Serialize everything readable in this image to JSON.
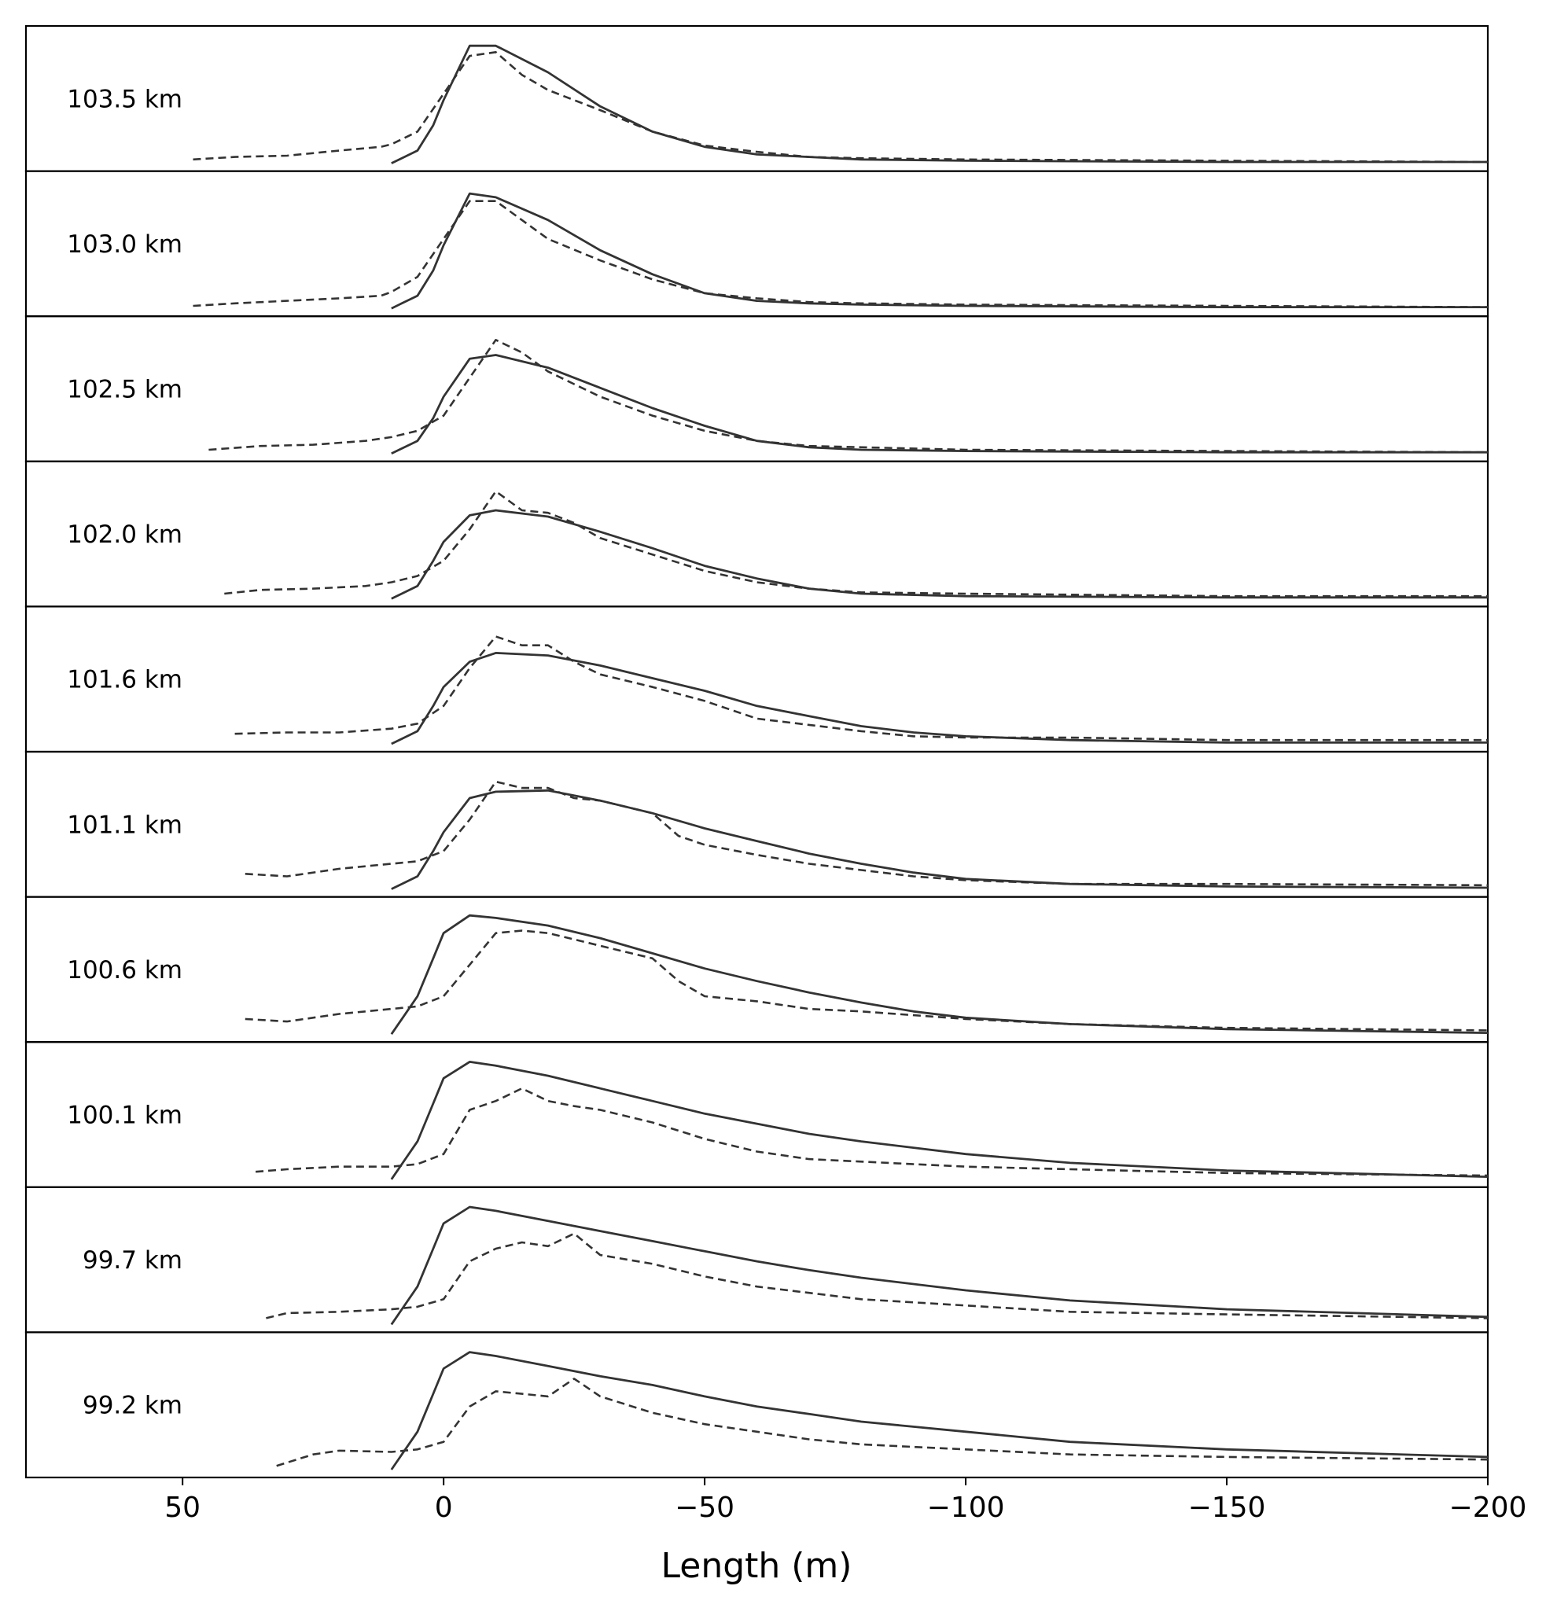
{
  "chart_data": {
    "type": "line",
    "xlabel": "Length (m)",
    "xlim": [
      80,
      -200
    ],
    "xticks": [
      50,
      0,
      -50,
      -100,
      -150,
      -200
    ],
    "xtick_labels": [
      "50",
      "0",
      "−50",
      "−100",
      "−150",
      "−200"
    ],
    "ylim": [
      0,
      1
    ],
    "grid": false,
    "styles": {
      "model": {
        "dash": "solid",
        "color": "#333333"
      },
      "observed": {
        "dash": "dashed",
        "color": "#333333"
      }
    },
    "panels": [
      {
        "label": "103.5 km",
        "model": {
          "x": [
            10,
            5,
            2,
            0,
            -5,
            -10,
            -20,
            -30,
            -40,
            -50,
            -60,
            -70,
            -80,
            -100,
            -150,
            -200
          ],
          "y": [
            0.0,
            0.1,
            0.3,
            0.5,
            0.93,
            0.93,
            0.72,
            0.45,
            0.25,
            0.13,
            0.07,
            0.05,
            0.03,
            0.02,
            0.01,
            0.01
          ]
        },
        "observed": {
          "x": [
            48,
            40,
            30,
            20,
            12,
            10,
            5,
            0,
            -5,
            -10,
            -15,
            -20,
            -30,
            -40,
            -50,
            -60,
            -70,
            -80,
            -100,
            -150,
            -200
          ],
          "y": [
            0.03,
            0.05,
            0.06,
            0.1,
            0.13,
            0.15,
            0.25,
            0.55,
            0.85,
            0.88,
            0.7,
            0.58,
            0.42,
            0.25,
            0.14,
            0.09,
            0.05,
            0.04,
            0.03,
            0.02,
            0.01
          ]
        }
      },
      {
        "label": "103.0 km",
        "model": {
          "x": [
            10,
            5,
            2,
            0,
            -5,
            -10,
            -20,
            -30,
            -40,
            -50,
            -60,
            -70,
            -80,
            -100,
            -150,
            -200
          ],
          "y": [
            0.0,
            0.1,
            0.3,
            0.5,
            0.91,
            0.88,
            0.7,
            0.46,
            0.27,
            0.12,
            0.06,
            0.04,
            0.03,
            0.02,
            0.01,
            0.01
          ]
        },
        "observed": {
          "x": [
            48,
            40,
            30,
            20,
            12,
            10,
            5,
            0,
            -5,
            -10,
            -15,
            -20,
            -30,
            -40,
            -50,
            -60,
            -70,
            -80,
            -100,
            -150,
            -200
          ],
          "y": [
            0.02,
            0.04,
            0.06,
            0.08,
            0.1,
            0.13,
            0.25,
            0.55,
            0.85,
            0.85,
            0.7,
            0.55,
            0.38,
            0.23,
            0.12,
            0.08,
            0.05,
            0.04,
            0.03,
            0.02,
            0.01
          ]
        }
      },
      {
        "label": "102.5 km",
        "model": {
          "x": [
            10,
            5,
            2,
            0,
            -5,
            -10,
            -20,
            -30,
            -40,
            -50,
            -60,
            -70,
            -80,
            -100,
            -150,
            -200
          ],
          "y": [
            0.0,
            0.1,
            0.28,
            0.45,
            0.75,
            0.78,
            0.68,
            0.52,
            0.36,
            0.22,
            0.1,
            0.05,
            0.03,
            0.02,
            0.01,
            0.01
          ]
        },
        "observed": {
          "x": [
            45,
            35,
            25,
            15,
            10,
            5,
            0,
            -5,
            -10,
            -15,
            -20,
            -25,
            -30,
            -40,
            -50,
            -60,
            -70,
            -80,
            -100,
            -150,
            -200
          ],
          "y": [
            0.03,
            0.06,
            0.07,
            0.1,
            0.13,
            0.18,
            0.3,
            0.6,
            0.9,
            0.8,
            0.65,
            0.55,
            0.45,
            0.3,
            0.18,
            0.1,
            0.06,
            0.05,
            0.03,
            0.02,
            0.01
          ]
        }
      },
      {
        "label": "102.0 km",
        "model": {
          "x": [
            10,
            5,
            2,
            0,
            -5,
            -10,
            -20,
            -30,
            -40,
            -50,
            -60,
            -70,
            -80,
            -100,
            -150,
            -200
          ],
          "y": [
            0.0,
            0.1,
            0.3,
            0.45,
            0.66,
            0.7,
            0.65,
            0.53,
            0.4,
            0.26,
            0.16,
            0.08,
            0.04,
            0.02,
            0.01,
            0.01
          ]
        },
        "observed": {
          "x": [
            42,
            35,
            25,
            15,
            10,
            5,
            0,
            -5,
            -10,
            -15,
            -20,
            -25,
            -30,
            -40,
            -50,
            -60,
            -70,
            -80,
            -100,
            -150,
            -200
          ],
          "y": [
            0.04,
            0.07,
            0.08,
            0.1,
            0.13,
            0.18,
            0.3,
            0.55,
            0.85,
            0.7,
            0.68,
            0.6,
            0.48,
            0.35,
            0.22,
            0.13,
            0.08,
            0.05,
            0.04,
            0.02,
            0.02
          ]
        }
      },
      {
        "label": "101.6 km",
        "model": {
          "x": [
            10,
            5,
            2,
            0,
            -5,
            -10,
            -20,
            -30,
            -40,
            -50,
            -60,
            -70,
            -80,
            -90,
            -100,
            -120,
            -150,
            -200
          ],
          "y": [
            0.0,
            0.1,
            0.3,
            0.45,
            0.65,
            0.72,
            0.7,
            0.62,
            0.52,
            0.42,
            0.3,
            0.22,
            0.14,
            0.09,
            0.06,
            0.03,
            0.01,
            0.01
          ]
        },
        "observed": {
          "x": [
            40,
            30,
            20,
            10,
            5,
            0,
            -5,
            -10,
            -15,
            -20,
            -25,
            -30,
            -40,
            -50,
            -60,
            -70,
            -80,
            -90,
            -100,
            -120,
            -150,
            -200
          ],
          "y": [
            0.08,
            0.09,
            0.09,
            0.12,
            0.16,
            0.3,
            0.6,
            0.85,
            0.78,
            0.78,
            0.65,
            0.55,
            0.45,
            0.34,
            0.2,
            0.15,
            0.1,
            0.06,
            0.05,
            0.05,
            0.03,
            0.03
          ]
        }
      },
      {
        "label": "101.1 km",
        "model": {
          "x": [
            10,
            5,
            2,
            0,
            -5,
            -10,
            -20,
            -30,
            -40,
            -50,
            -60,
            -70,
            -80,
            -90,
            -100,
            -120,
            -150,
            -200
          ],
          "y": [
            0.0,
            0.1,
            0.3,
            0.45,
            0.72,
            0.77,
            0.78,
            0.7,
            0.6,
            0.48,
            0.38,
            0.28,
            0.2,
            0.13,
            0.08,
            0.04,
            0.02,
            0.01
          ]
        },
        "observed": {
          "x": [
            38,
            30,
            20,
            10,
            5,
            0,
            -5,
            -10,
            -15,
            -20,
            -25,
            -30,
            -40,
            -45,
            -50,
            -60,
            -70,
            -80,
            -90,
            -100,
            -120,
            -150,
            -200
          ],
          "y": [
            0.12,
            0.1,
            0.16,
            0.2,
            0.22,
            0.3,
            0.55,
            0.85,
            0.8,
            0.8,
            0.72,
            0.7,
            0.6,
            0.42,
            0.35,
            0.27,
            0.2,
            0.15,
            0.1,
            0.07,
            0.04,
            0.04,
            0.03
          ]
        }
      },
      {
        "label": "100.6 km",
        "model": {
          "x": [
            10,
            5,
            2,
            0,
            -5,
            -10,
            -20,
            -30,
            -40,
            -50,
            -60,
            -70,
            -80,
            -90,
            -100,
            -120,
            -150,
            -200
          ],
          "y": [
            0.0,
            0.3,
            0.6,
            0.8,
            0.94,
            0.92,
            0.86,
            0.76,
            0.64,
            0.52,
            0.42,
            0.33,
            0.25,
            0.18,
            0.13,
            0.08,
            0.04,
            0.01
          ]
        },
        "observed": {
          "x": [
            38,
            30,
            20,
            10,
            5,
            0,
            -5,
            -10,
            -15,
            -20,
            -25,
            -30,
            -40,
            -45,
            -50,
            -60,
            -70,
            -80,
            -90,
            -100,
            -120,
            -150,
            -200
          ],
          "y": [
            0.12,
            0.1,
            0.16,
            0.2,
            0.22,
            0.3,
            0.55,
            0.8,
            0.82,
            0.8,
            0.75,
            0.7,
            0.6,
            0.42,
            0.3,
            0.26,
            0.2,
            0.18,
            0.15,
            0.12,
            0.08,
            0.05,
            0.03
          ]
        }
      },
      {
        "label": "100.1 km",
        "model": {
          "x": [
            10,
            5,
            2,
            0,
            -5,
            -10,
            -20,
            -30,
            -40,
            -50,
            -60,
            -70,
            -80,
            -100,
            -120,
            -150,
            -200
          ],
          "y": [
            0.0,
            0.3,
            0.6,
            0.8,
            0.93,
            0.9,
            0.82,
            0.72,
            0.62,
            0.52,
            0.44,
            0.36,
            0.3,
            0.2,
            0.13,
            0.07,
            0.02
          ]
        },
        "observed": {
          "x": [
            36,
            30,
            20,
            10,
            5,
            0,
            -5,
            -10,
            -15,
            -20,
            -25,
            -30,
            -40,
            -50,
            -60,
            -70,
            -80,
            -100,
            -120,
            -150,
            -200
          ],
          "y": [
            0.06,
            0.08,
            0.1,
            0.1,
            0.12,
            0.2,
            0.55,
            0.62,
            0.72,
            0.62,
            0.58,
            0.55,
            0.45,
            0.32,
            0.22,
            0.16,
            0.14,
            0.1,
            0.08,
            0.05,
            0.03
          ]
        }
      },
      {
        "label": "99.7 km",
        "model": {
          "x": [
            10,
            5,
            2,
            0,
            -5,
            -10,
            -20,
            -30,
            -40,
            -50,
            -60,
            -70,
            -80,
            -100,
            -120,
            -150,
            -200
          ],
          "y": [
            0.0,
            0.3,
            0.6,
            0.8,
            0.93,
            0.9,
            0.82,
            0.74,
            0.66,
            0.58,
            0.5,
            0.43,
            0.37,
            0.27,
            0.19,
            0.12,
            0.06
          ]
        },
        "observed": {
          "x": [
            34,
            30,
            20,
            10,
            5,
            0,
            -5,
            -10,
            -15,
            -20,
            -25,
            -30,
            -40,
            -50,
            -60,
            -70,
            -80,
            -100,
            -120,
            -150,
            -200
          ],
          "y": [
            0.05,
            0.09,
            0.1,
            0.12,
            0.14,
            0.2,
            0.5,
            0.6,
            0.65,
            0.62,
            0.72,
            0.55,
            0.48,
            0.38,
            0.3,
            0.25,
            0.2,
            0.15,
            0.1,
            0.08,
            0.05
          ]
        }
      },
      {
        "label": "99.2 km",
        "model": {
          "x": [
            10,
            5,
            2,
            0,
            -5,
            -10,
            -20,
            -30,
            -40,
            -50,
            -60,
            -70,
            -80,
            -100,
            -120,
            -150,
            -200
          ],
          "y": [
            0.0,
            0.3,
            0.6,
            0.8,
            0.93,
            0.9,
            0.82,
            0.74,
            0.67,
            0.58,
            0.5,
            0.44,
            0.38,
            0.3,
            0.22,
            0.16,
            0.1
          ]
        },
        "observed": {
          "x": [
            32,
            25,
            20,
            10,
            5,
            0,
            -5,
            -10,
            -15,
            -20,
            -25,
            -30,
            -40,
            -50,
            -60,
            -70,
            -80,
            -100,
            -120,
            -150,
            -200
          ],
          "y": [
            0.03,
            0.12,
            0.15,
            0.14,
            0.16,
            0.22,
            0.5,
            0.62,
            0.6,
            0.58,
            0.72,
            0.58,
            0.45,
            0.36,
            0.3,
            0.24,
            0.2,
            0.16,
            0.12,
            0.1,
            0.08
          ]
        }
      }
    ]
  }
}
